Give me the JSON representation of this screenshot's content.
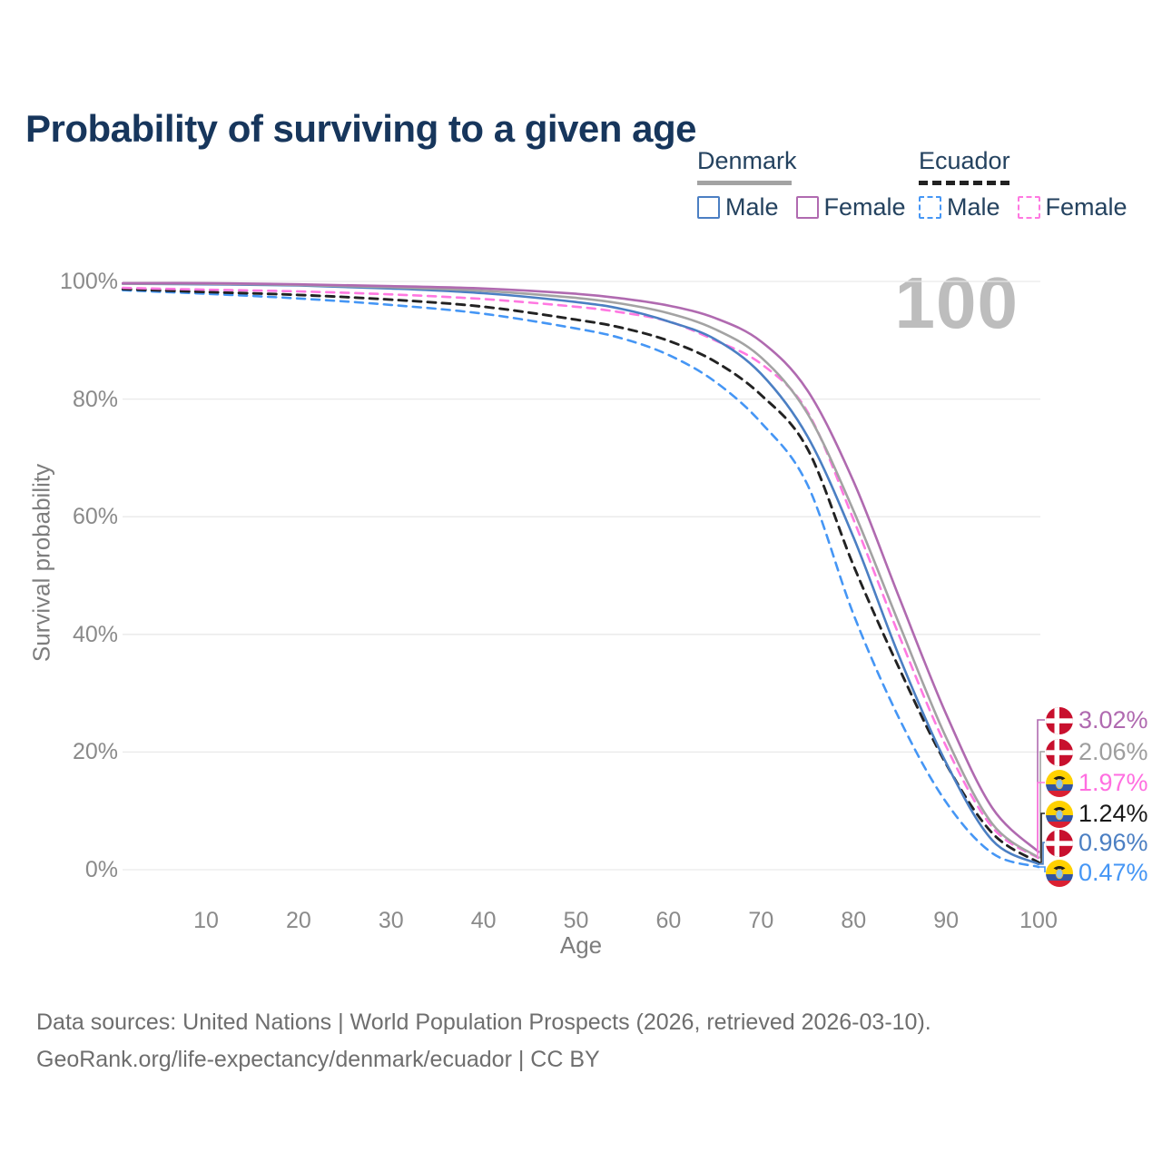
{
  "title": "Probability of surviving to a given age",
  "watermark_age": "100",
  "legend": {
    "groups": [
      {
        "country": "Denmark",
        "line_style": "solid",
        "line_color": "#a3a3a3",
        "items": [
          {
            "label": "Male",
            "color": "#4b7fc3",
            "dashed": false
          },
          {
            "label": "Female",
            "color": "#b06ab0",
            "dashed": false
          }
        ]
      },
      {
        "country": "Ecuador",
        "line_style": "dashed",
        "line_color": "#222222",
        "items": [
          {
            "label": "Male",
            "color": "#4596f5",
            "dashed": true
          },
          {
            "label": "Female",
            "color": "#ff78e1",
            "dashed": true
          }
        ]
      }
    ]
  },
  "axes": {
    "x": {
      "label": "Age",
      "ticks": [
        "10",
        "20",
        "30",
        "40",
        "50",
        "60",
        "70",
        "80",
        "90",
        "100"
      ]
    },
    "y": {
      "label": "Survival probability",
      "ticks": [
        "100%",
        "80%",
        "60%",
        "40%",
        "20%",
        "0%"
      ]
    }
  },
  "chart_data": {
    "type": "line",
    "title": "Probability of surviving to a given age",
    "xlabel": "Age",
    "ylabel": "Survival probability",
    "xlim": [
      1,
      100
    ],
    "ylim": [
      0,
      100
    ],
    "grid": "horizontal",
    "x": [
      1,
      10,
      20,
      30,
      40,
      50,
      55,
      60,
      65,
      70,
      75,
      80,
      85,
      90,
      95,
      100
    ],
    "series": [
      {
        "id": "dk_f",
        "name": "Denmark Female",
        "color": "#b06ab0",
        "dash": "solid",
        "values": [
          99.7,
          99.7,
          99.5,
          99.2,
          98.8,
          97.9,
          97.1,
          95.9,
          93.8,
          89.8,
          81.5,
          66.0,
          46.0,
          26.5,
          10.5,
          3.02
        ]
      },
      {
        "id": "dk_b",
        "name": "Denmark Both sexes",
        "color": "#a3a3a3",
        "dash": "solid",
        "values": [
          99.6,
          99.6,
          99.4,
          99.0,
          98.4,
          97.2,
          96.2,
          94.6,
          91.9,
          87.1,
          77.6,
          61.0,
          41.5,
          22.5,
          7.8,
          2.06
        ]
      },
      {
        "id": "dk_m",
        "name": "Denmark Male",
        "color": "#4b7fc3",
        "dash": "solid",
        "values": [
          99.6,
          99.5,
          99.3,
          98.8,
          98.0,
          96.5,
          95.3,
          93.2,
          90.2,
          84.3,
          73.7,
          56.5,
          36.0,
          18.2,
          5.0,
          0.96
        ]
      },
      {
        "id": "ec_f",
        "name": "Ecuador Female",
        "color": "#ff78e1",
        "dash": "dashed",
        "values": [
          98.9,
          98.6,
          98.3,
          97.8,
          97.0,
          95.7,
          94.7,
          93.2,
          90.0,
          86.0,
          77.9,
          59.5,
          39.5,
          21.0,
          7.2,
          1.97
        ]
      },
      {
        "id": "ec_b",
        "name": "Ecuador Both sexes",
        "color": "#222222",
        "dash": "dashed",
        "values": [
          98.7,
          98.2,
          97.7,
          96.9,
          95.7,
          93.5,
          92.1,
          89.9,
          86.4,
          80.7,
          71.6,
          51.7,
          34.0,
          18.0,
          6.2,
          1.24
        ]
      },
      {
        "id": "ec_m",
        "name": "Ecuador Male",
        "color": "#4596f5",
        "dash": "dashed",
        "values": [
          98.5,
          97.9,
          97.1,
          96.0,
          94.5,
          92.0,
          90.3,
          87.5,
          83.0,
          76.0,
          65.5,
          43.4,
          25.5,
          11.5,
          2.8,
          0.47
        ]
      }
    ],
    "end_labels": [
      {
        "series_id": "dk_f",
        "value": "3.02%",
        "flag": "denmark",
        "color": "#b06ab0"
      },
      {
        "series_id": "dk_b",
        "value": "2.06%",
        "flag": "denmark",
        "color": "#9e9e9e"
      },
      {
        "series_id": "ec_f",
        "value": "1.97%",
        "flag": "ecuador",
        "color": "#ff6ee0"
      },
      {
        "series_id": "ec_b",
        "value": "1.24%",
        "flag": "ecuador",
        "color": "#1a1a1a"
      },
      {
        "series_id": "dk_m",
        "value": "0.96%",
        "flag": "denmark",
        "color": "#4b7fc3"
      },
      {
        "series_id": "ec_m",
        "value": "0.47%",
        "flag": "ecuador",
        "color": "#4596f5"
      }
    ]
  },
  "footer": {
    "line1": "Data sources: United Nations | World Population Prospects (2026, retrieved 2026-03-10).",
    "line2": "GeoRank.org/life-expectancy/denmark/ecuador | CC BY"
  }
}
